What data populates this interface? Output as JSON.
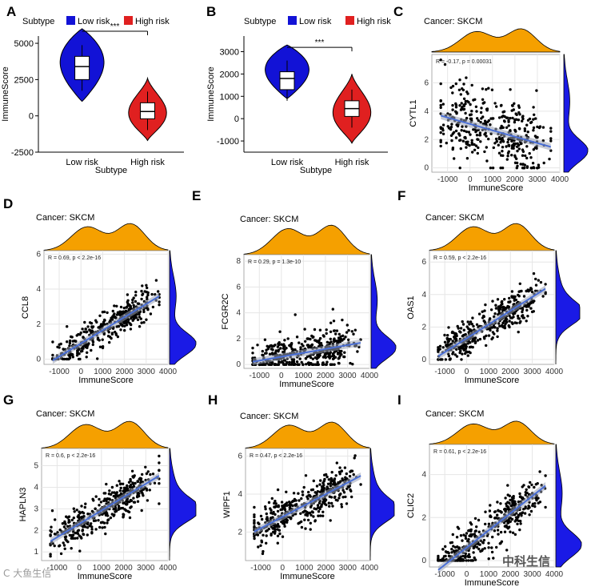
{
  "figure": {
    "watermarks": {
      "left": "C 大鱼生信",
      "right": "中科生信"
    }
  },
  "chart_data": [
    {
      "panel": "A",
      "type": "violin",
      "legend_title": "Subtype",
      "legend_position": "top",
      "categories": [
        "Low risk",
        "High risk"
      ],
      "colors": [
        "#1212d6",
        "#e02020"
      ],
      "xlabel": "Subtype",
      "ylabel": "ImmuneScore",
      "ylim": [
        -2500,
        5500
      ],
      "yticks": [
        -2500,
        0,
        2500,
        5000
      ],
      "significance": "***",
      "box": [
        {
          "q1": 2500,
          "median": 3400,
          "q3": 4100,
          "min": 1000,
          "max": 6000
        },
        {
          "q1": -200,
          "median": 300,
          "q3": 900,
          "min": -1700,
          "max": 2600
        }
      ]
    },
    {
      "panel": "B",
      "type": "violin",
      "legend_title": "Subtype",
      "legend_position": "top",
      "categories": [
        "Low risk",
        "High risk"
      ],
      "colors": [
        "#1212d6",
        "#e02020"
      ],
      "xlabel": "Subtype",
      "ylabel": "ImmuneScore",
      "ylim": [
        -1500,
        3700
      ],
      "yticks": [
        -1000,
        0,
        1000,
        2000,
        3000
      ],
      "significance": "***",
      "box": [
        {
          "q1": 1300,
          "median": 1800,
          "q3": 2100,
          "min": 900,
          "max": 3300
        },
        {
          "q1": 100,
          "median": 450,
          "q3": 800,
          "min": -1100,
          "max": 2000
        }
      ]
    },
    {
      "panel": "C",
      "type": "scatter",
      "title": "Cancer: SKCM",
      "xlabel": "ImmuneScore",
      "ylabel": "CYTL1",
      "annotation": "R = -0.17, p = 0.00031",
      "xlim": [
        -1700,
        4000
      ],
      "ylim": [
        -0.3,
        8
      ],
      "xticks": [
        -1000,
        0,
        1000,
        2000,
        3000,
        4000
      ],
      "yticks": [
        0,
        2,
        4,
        6
      ],
      "points": {
        "n": 400,
        "slope": -0.00045,
        "intercept": 3.1,
        "noise": 2.2,
        "ymin": 0,
        "ymax": 7.7
      },
      "density": {
        "x": "bimodal",
        "y": "low"
      }
    },
    {
      "panel": "D",
      "type": "scatter",
      "title": "Cancer: SKCM",
      "xlabel": "ImmuneScore",
      "ylabel": "CCL8",
      "annotation": "R = 0.69, p < 2.2e-16",
      "xlim": [
        -1700,
        4000
      ],
      "ylim": [
        -0.3,
        6.2
      ],
      "xticks": [
        -1000,
        0,
        1000,
        2000,
        3000,
        4000
      ],
      "yticks": [
        0,
        2,
        4,
        6
      ],
      "points": {
        "n": 400,
        "slope": 0.00075,
        "intercept": 0.9,
        "noise": 0.8,
        "ymin": 0,
        "ymax": 5.8
      },
      "density": {
        "x": "bimodal",
        "y": "low"
      }
    },
    {
      "panel": "E",
      "type": "scatter",
      "title": "Cancer: SKCM",
      "xlabel": "ImmuneScore",
      "ylabel": "FCGR2C",
      "annotation": "R = 0.29, p = 1.3e-10",
      "xlim": [
        -1700,
        4000
      ],
      "ylim": [
        -0.3,
        8.5
      ],
      "xticks": [
        -1000,
        0,
        1000,
        2000,
        3000,
        4000
      ],
      "yticks": [
        0,
        2,
        4,
        6,
        8
      ],
      "points": {
        "n": 420,
        "slope": 0.0003,
        "intercept": 0.6,
        "noise": 1.3,
        "ymin": 0,
        "ymax": 8
      },
      "density": {
        "x": "bimodal",
        "y": "low"
      }
    },
    {
      "panel": "F",
      "type": "scatter",
      "title": "Cancer: SKCM",
      "xlabel": "ImmuneScore",
      "ylabel": "OAS1",
      "annotation": "R = 0.59, p < 2.2e-16",
      "xlim": [
        -1700,
        4000
      ],
      "ylim": [
        -0.3,
        6.7
      ],
      "xticks": [
        -1000,
        0,
        1000,
        2000,
        3000,
        4000
      ],
      "yticks": [
        0,
        2,
        4,
        6
      ],
      "points": {
        "n": 420,
        "slope": 0.00085,
        "intercept": 1.3,
        "noise": 0.9,
        "ymin": 0,
        "ymax": 6.4
      },
      "density": {
        "x": "bimodal",
        "y": "mid"
      }
    },
    {
      "panel": "G",
      "type": "scatter",
      "title": "Cancer: SKCM",
      "xlabel": "ImmuneScore",
      "ylabel": "HAPLN3",
      "annotation": "R = 0.6, p < 2.2e-16",
      "xlim": [
        -1700,
        4000
      ],
      "ylim": [
        0.6,
        5.8
      ],
      "xticks": [
        -1000,
        0,
        1000,
        2000,
        3000,
        4000
      ],
      "yticks": [
        1,
        2,
        3,
        4,
        5
      ],
      "points": {
        "n": 420,
        "slope": 0.00062,
        "intercept": 2.3,
        "noise": 0.7,
        "ymin": 0.8,
        "ymax": 5.6
      },
      "density": {
        "x": "bimodal",
        "y": "mid"
      }
    },
    {
      "panel": "H",
      "type": "scatter",
      "title": "Cancer: SKCM",
      "xlabel": "ImmuneScore",
      "ylabel": "WIPF1",
      "annotation": "R = 0.47, p < 2.2e-16",
      "xlim": [
        -1700,
        4000
      ],
      "ylim": [
        0.5,
        6.4
      ],
      "xticks": [
        -1000,
        0,
        1000,
        2000,
        3000,
        4000
      ],
      "yticks": [
        2,
        4,
        6
      ],
      "points": {
        "n": 420,
        "slope": 0.0006,
        "intercept": 2.8,
        "noise": 0.9,
        "ymin": 0.8,
        "ymax": 6.1
      },
      "density": {
        "x": "bimodal",
        "y": "mid"
      }
    },
    {
      "panel": "I",
      "type": "scatter",
      "title": "Cancer: SKCM",
      "xlabel": "ImmuneScore",
      "ylabel": "CLIC2",
      "annotation": "R = 0.61, p < 2.2e-16",
      "xlim": [
        -1700,
        4000
      ],
      "ylim": [
        -0.3,
        5.4
      ],
      "xticks": [
        -1000,
        0,
        1000,
        2000,
        3000,
        4000
      ],
      "yticks": [
        0,
        2,
        4
      ],
      "points": {
        "n": 420,
        "slope": 0.0008,
        "intercept": 0.6,
        "noise": 0.8,
        "ymin": 0,
        "ymax": 5
      },
      "density": {
        "x": "bimodal",
        "y": "low"
      }
    }
  ]
}
